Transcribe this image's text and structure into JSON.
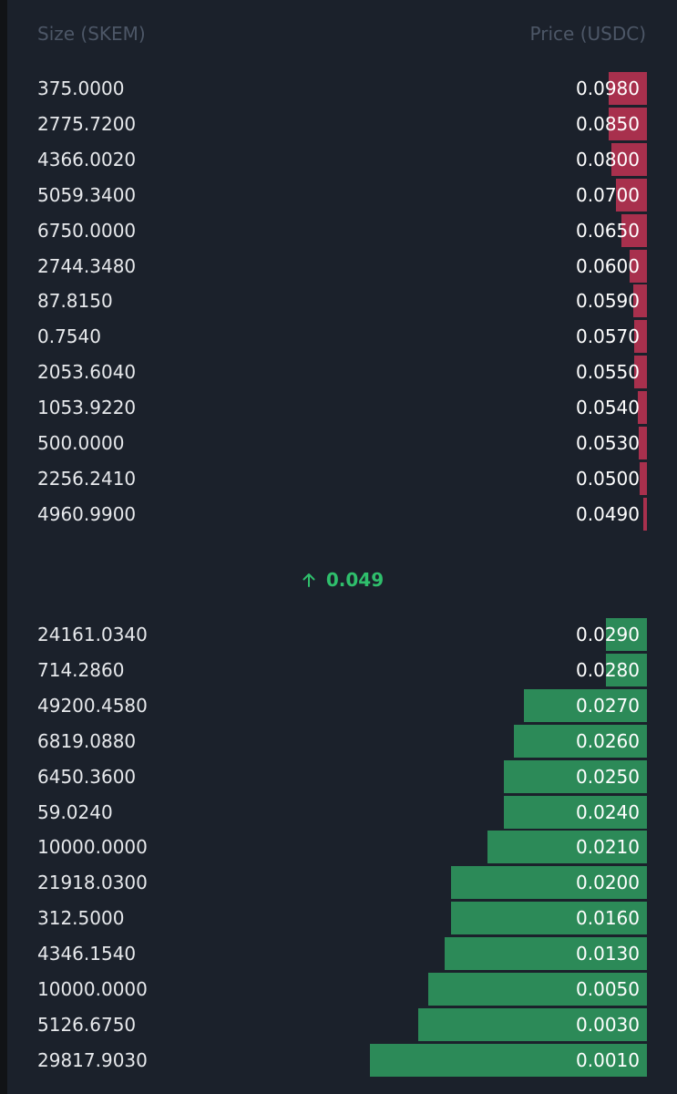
{
  "header": {
    "size_label": "Size (SKEM)",
    "price_label": "Price (USDC)"
  },
  "asks": [
    {
      "size": "375.0000",
      "price": "0.0980",
      "depth": 0.057
    },
    {
      "size": "2775.7200",
      "price": "0.0850",
      "depth": 0.057
    },
    {
      "size": "4366.0020",
      "price": "0.0800",
      "depth": 0.053
    },
    {
      "size": "5059.3400",
      "price": "0.0700",
      "depth": 0.047
    },
    {
      "size": "6750.0000",
      "price": "0.0650",
      "depth": 0.038
    },
    {
      "size": "2744.3480",
      "price": "0.0600",
      "depth": 0.026
    },
    {
      "size": "87.8150",
      "price": "0.0590",
      "depth": 0.02
    },
    {
      "size": "0.7540",
      "price": "0.0570",
      "depth": 0.019
    },
    {
      "size": "2053.6040",
      "price": "0.0550",
      "depth": 0.019
    },
    {
      "size": "1053.9220",
      "price": "0.0540",
      "depth": 0.014
    },
    {
      "size": "500.0000",
      "price": "0.0530",
      "depth": 0.012
    },
    {
      "size": "2256.2410",
      "price": "0.0500",
      "depth": 0.011
    },
    {
      "size": "4960.9900",
      "price": "0.0490",
      "depth": 0.006
    }
  ],
  "last_price": {
    "direction_icon": "arrow-up-icon",
    "value": "0.049",
    "color": "#2fbf6c"
  },
  "bids": [
    {
      "size": "24161.0340",
      "price": "0.0290",
      "depth": 0.061
    },
    {
      "size": "714.2860",
      "price": "0.0280",
      "depth": 0.061
    },
    {
      "size": "49200.4580",
      "price": "0.0270",
      "depth": 0.185
    },
    {
      "size": "6819.0880",
      "price": "0.0260",
      "depth": 0.2
    },
    {
      "size": "6450.3600",
      "price": "0.0250",
      "depth": 0.215
    },
    {
      "size": "59.0240",
      "price": "0.0240",
      "depth": 0.215
    },
    {
      "size": "10000.0000",
      "price": "0.0210",
      "depth": 0.24
    },
    {
      "size": "21918.0300",
      "price": "0.0200",
      "depth": 0.295
    },
    {
      "size": "312.5000",
      "price": "0.0160",
      "depth": 0.295
    },
    {
      "size": "4346.1540",
      "price": "0.0130",
      "depth": 0.304
    },
    {
      "size": "10000.0000",
      "price": "0.0050",
      "depth": 0.329
    },
    {
      "size": "5126.6750",
      "price": "0.0030",
      "depth": 0.344
    },
    {
      "size": "29817.9030",
      "price": "0.0010",
      "depth": 0.417
    }
  ],
  "colors": {
    "background": "#1b212b",
    "ask_bar": "#a8304d",
    "bid_bar": "#2c8a58",
    "header_text": "#4d5767",
    "size_text": "#e7e9ec",
    "price_text": "#ffffff"
  }
}
